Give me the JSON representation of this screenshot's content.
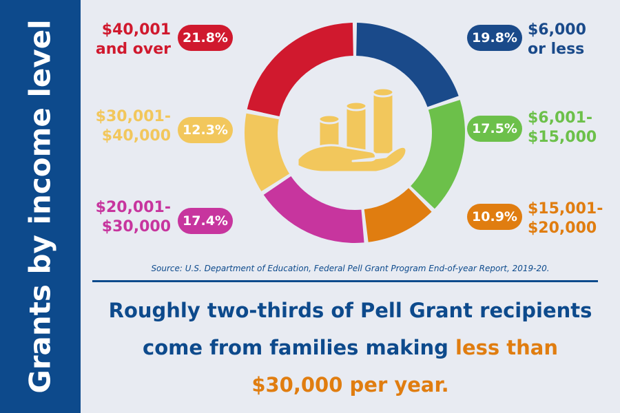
{
  "sidebar": {
    "title": "Grants by income level"
  },
  "chart_data": {
    "type": "pie",
    "donut": true,
    "categories": [
      "$6,000\nor less",
      "$6,001-\n$15,000",
      "$15,001-\n$20,000",
      "$20,001-\n$30,000",
      "$30,001-\n$40,000",
      "$40,001\nand over"
    ],
    "values": [
      19.8,
      17.5,
      10.9,
      17.4,
      12.3,
      21.8
    ],
    "value_labels": [
      "19.8%",
      "17.5%",
      "10.9%",
      "17.4%",
      "12.3%",
      "21.8%"
    ],
    "colors": [
      "#1a4a8a",
      "#6cc04a",
      "#e07d10",
      "#c7359e",
      "#f2c75c",
      "#d0192e"
    ],
    "center_icon": "hand-holding-coins-icon"
  },
  "source": "Source: U.S. Department of Education, Federal Pell Grant Program End-of-year Report, 2019-20.",
  "headline": {
    "part1": "Roughly two-thirds of Pell Grant recipients",
    "part2": "come from families making ",
    "highlight_part": "less than",
    "highlight_part2": "$30,000 per year."
  }
}
